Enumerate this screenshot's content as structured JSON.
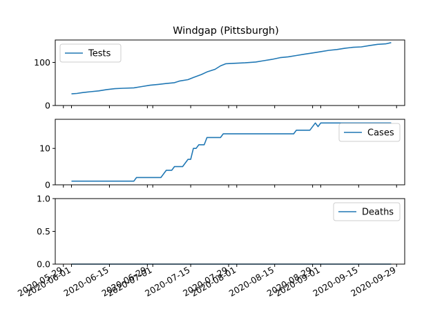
{
  "figure": {
    "title": "Windgap (Pittsburgh)"
  },
  "chart_data": [
    {
      "type": "line",
      "title": "Windgap (Pittsburgh)",
      "xlabel": "",
      "ylabel": "",
      "ylim": [
        0,
        152
      ],
      "yticks": [
        0,
        100
      ],
      "grid": false,
      "legend_position": "upper left",
      "series": [
        {
          "name": "Tests",
          "color": "#1f77b4",
          "points": [
            [
              "2020-06-01",
              27
            ],
            [
              "2020-06-03",
              28
            ],
            [
              "2020-06-05",
              30
            ],
            [
              "2020-06-08",
              32
            ],
            [
              "2020-06-11",
              34
            ],
            [
              "2020-06-14",
              37
            ],
            [
              "2020-06-17",
              39
            ],
            [
              "2020-06-20",
              40
            ],
            [
              "2020-06-24",
              41
            ],
            [
              "2020-06-27",
              44
            ],
            [
              "2020-06-30",
              47
            ],
            [
              "2020-07-03",
              49
            ],
            [
              "2020-07-06",
              51
            ],
            [
              "2020-07-09",
              53
            ],
            [
              "2020-07-11",
              57
            ],
            [
              "2020-07-14",
              60
            ],
            [
              "2020-07-16",
              65
            ],
            [
              "2020-07-19",
              72
            ],
            [
              "2020-07-21",
              78
            ],
            [
              "2020-07-24",
              84
            ],
            [
              "2020-07-26",
              92
            ],
            [
              "2020-07-28",
              97
            ],
            [
              "2020-07-31",
              98
            ],
            [
              "2020-08-04",
              99
            ],
            [
              "2020-08-08",
              101
            ],
            [
              "2020-08-11",
              104
            ],
            [
              "2020-08-14",
              107
            ],
            [
              "2020-08-17",
              111
            ],
            [
              "2020-08-20",
              113
            ],
            [
              "2020-08-23",
              116
            ],
            [
              "2020-08-26",
              119
            ],
            [
              "2020-08-29",
              122
            ],
            [
              "2020-09-01",
              125
            ],
            [
              "2020-09-04",
              128
            ],
            [
              "2020-09-07",
              130
            ],
            [
              "2020-09-10",
              133
            ],
            [
              "2020-09-13",
              135
            ],
            [
              "2020-09-16",
              136
            ],
            [
              "2020-09-19",
              139
            ],
            [
              "2020-09-22",
              142
            ],
            [
              "2020-09-25",
              143
            ],
            [
              "2020-09-27",
              146
            ]
          ]
        }
      ]
    },
    {
      "type": "line",
      "title": "",
      "xlabel": "",
      "ylabel": "",
      "ylim": [
        0,
        18
      ],
      "yticks": [
        0,
        10
      ],
      "grid": false,
      "legend_position": "upper right",
      "series": [
        {
          "name": "Cases",
          "color": "#1f77b4",
          "points": [
            [
              "2020-06-01",
              1
            ],
            [
              "2020-06-24",
              1
            ],
            [
              "2020-06-25",
              2
            ],
            [
              "2020-07-04",
              2
            ],
            [
              "2020-07-06",
              4
            ],
            [
              "2020-07-08",
              4
            ],
            [
              "2020-07-09",
              5
            ],
            [
              "2020-07-12",
              5
            ],
            [
              "2020-07-14",
              7
            ],
            [
              "2020-07-15",
              7
            ],
            [
              "2020-07-16",
              10
            ],
            [
              "2020-07-17",
              10
            ],
            [
              "2020-07-18",
              11
            ],
            [
              "2020-07-20",
              11
            ],
            [
              "2020-07-21",
              13
            ],
            [
              "2020-07-26",
              13
            ],
            [
              "2020-07-27",
              14
            ],
            [
              "2020-08-22",
              14
            ],
            [
              "2020-08-23",
              15
            ],
            [
              "2020-08-28",
              15
            ],
            [
              "2020-08-30",
              17
            ],
            [
              "2020-08-31",
              16
            ],
            [
              "2020-09-01",
              17
            ],
            [
              "2020-09-27",
              17
            ]
          ]
        }
      ]
    },
    {
      "type": "line",
      "title": "",
      "xlabel": "",
      "ylabel": "",
      "ylim": [
        0,
        1.0
      ],
      "yticks": [
        0.0,
        0.5,
        1.0
      ],
      "grid": false,
      "legend_position": "upper right",
      "series": [
        {
          "name": "Deaths",
          "color": "#1f77b4",
          "points": [
            [
              "2020-06-01",
              0
            ],
            [
              "2020-09-27",
              0
            ]
          ]
        }
      ]
    }
  ],
  "x_axis": {
    "range": [
      "2020-05-26",
      "2020-10-02"
    ],
    "shared": true,
    "tick_labels": [
      "2020-05-29",
      "2020-06-01",
      "2020-06-15",
      "2020-06-29",
      "2020-07-01",
      "2020-07-15",
      "2020-07-29",
      "2020-08-01",
      "2020-08-15",
      "2020-08-29",
      "2020-09-01",
      "2020-09-15",
      "2020-09-29"
    ]
  }
}
